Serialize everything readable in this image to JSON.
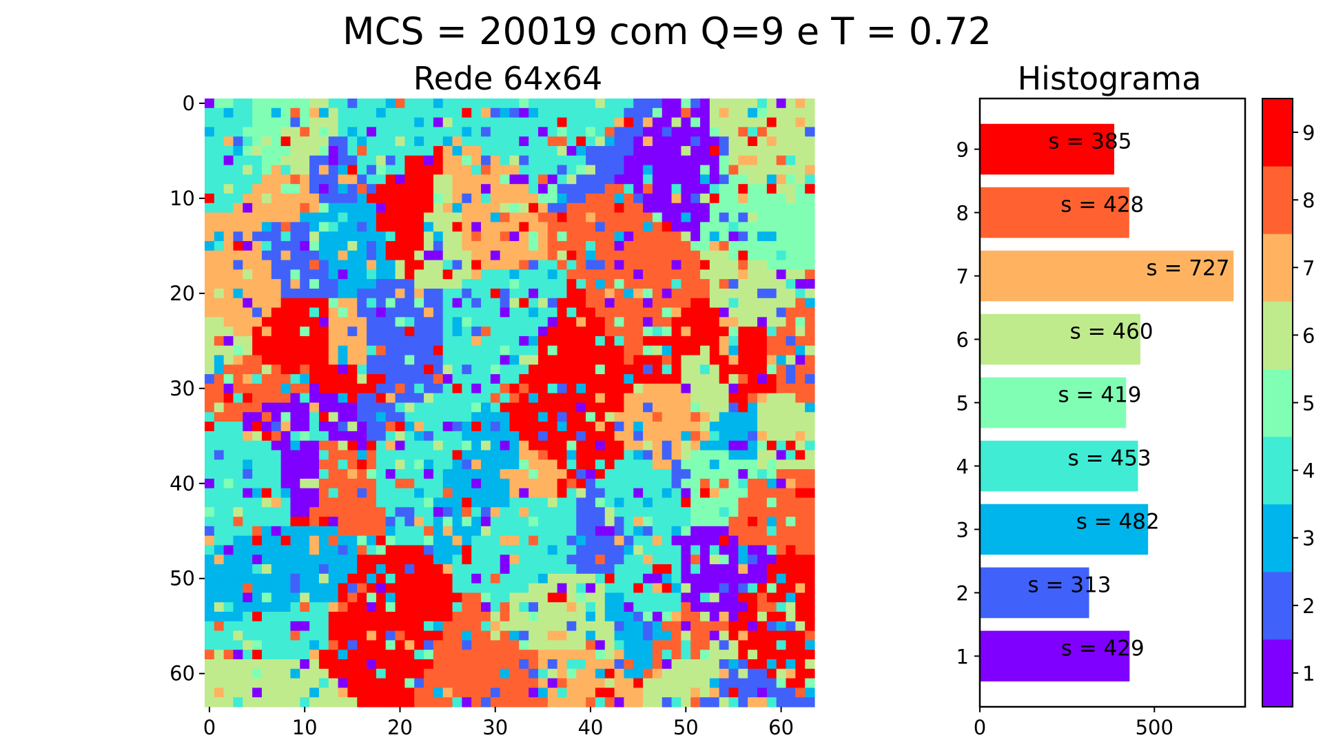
{
  "title": "MCS = 20019 com Q=9 e T = 0.72",
  "colors": [
    "#8000ff",
    "#4062fa",
    "#00b5eb",
    "#40ecd4",
    "#80ffb4",
    "#c0eb8d",
    "#ffb360",
    "#ff6230",
    "#ff0000"
  ],
  "chart_data": [
    {
      "type": "heatmap",
      "title": "Rede 64x64",
      "rows": 64,
      "cols": 64,
      "xticks": [
        "0",
        "10",
        "20",
        "30",
        "40",
        "50",
        "60"
      ],
      "yticks": [
        "0",
        "10",
        "20",
        "30",
        "40",
        "50",
        "60"
      ],
      "value_range": [
        1,
        9
      ],
      "note_values": "lattice of Potts spins (states 1-9); per-state counts listed in the histogram"
    },
    {
      "type": "bar",
      "orientation": "horizontal",
      "title": "Histograma",
      "categories": [
        "1",
        "2",
        "3",
        "4",
        "5",
        "6",
        "7",
        "8",
        "9"
      ],
      "values": [
        429,
        313,
        482,
        453,
        419,
        460,
        727,
        428,
        385
      ],
      "labels": [
        "s = 429",
        "s = 313",
        "s = 482",
        "s = 453",
        "s = 419",
        "s = 460",
        "s = 727",
        "s = 428",
        "s = 385"
      ],
      "xticks": [
        "0",
        "500"
      ],
      "xlim": [
        0,
        760
      ]
    },
    {
      "type": "colorbar",
      "ticks": [
        "1",
        "2",
        "3",
        "4",
        "5",
        "6",
        "7",
        "8",
        "9"
      ],
      "range": [
        1,
        9
      ]
    }
  ]
}
